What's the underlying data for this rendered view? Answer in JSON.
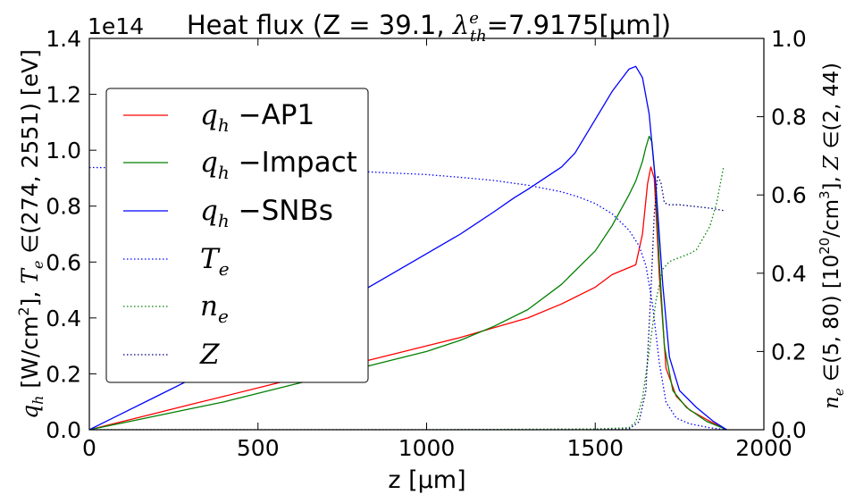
{
  "chart_data": {
    "type": "line",
    "title": "Heat flux (Z = 39.1, λ_th^e=7.9175[μm])",
    "title_parts": {
      "pre": "Heat flux (Z = 39.1, ",
      "symbol": "λ",
      "sup": "e",
      "sub": "th",
      "post": "=7.9175[μm])"
    },
    "offset_text": "1e14",
    "xlabel": "z [μm]",
    "ylabel_left": "q_h [W/cm^2], T_e ∈(274, 2551) [eV]",
    "ylabel_left_parts": {
      "sym1": "q",
      "sym1_sub": "h",
      "mid1": " [W/cm",
      "sup1": "2",
      "mid2": "], ",
      "sym2": "T",
      "sym2_sub": "e",
      "rest": " ∈(274, 2551) [eV]"
    },
    "ylabel_right": "n_e ∈(5, 80) [10^20/cm^3], Z ∈(2, 44)",
    "ylabel_right_parts": {
      "sym1": "n",
      "sym1_sub": "e",
      "mid1": " ∈(5, 80) [10",
      "sup1": "20",
      "mid2": "/cm",
      "sup2": "3",
      "mid3": "], ",
      "sym2": "Z",
      "rest": " ∈(2, 44)"
    },
    "xlim": [
      0,
      2000
    ],
    "ylim": [
      0,
      1.4
    ],
    "ylim_right": [
      0,
      1.0
    ],
    "x_ticks": [
      "0",
      "500",
      "1000",
      "1500",
      "2000"
    ],
    "y_ticks": [
      "0.0",
      "0.2",
      "0.4",
      "0.6",
      "0.8",
      "1.0",
      "1.2",
      "1.4"
    ],
    "y_ticks_right": [
      "0.0",
      "0.2",
      "0.4",
      "0.6",
      "0.8",
      "1.0"
    ],
    "grid": false,
    "legend_position": "upper-left",
    "series": [
      {
        "name": "q_h −AP1",
        "legend_symbol": "q",
        "legend_sub": "h",
        "legend_text": " −AP1",
        "color": "#ff0000",
        "style": "solid",
        "axis": "left",
        "x": [
          0,
          100,
          200,
          300,
          400,
          500,
          600,
          700,
          800,
          900,
          1000,
          1100,
          1200,
          1300,
          1400,
          1500,
          1550,
          1600,
          1620,
          1640,
          1655,
          1665,
          1675,
          1690,
          1710,
          1740,
          1780,
          1840,
          1890
        ],
        "y": [
          0.0,
          0.03,
          0.06,
          0.09,
          0.12,
          0.15,
          0.18,
          0.21,
          0.24,
          0.27,
          0.3,
          0.33,
          0.365,
          0.4,
          0.45,
          0.51,
          0.555,
          0.58,
          0.59,
          0.7,
          0.88,
          0.94,
          0.9,
          0.55,
          0.22,
          0.12,
          0.07,
          0.03,
          0.0
        ]
      },
      {
        "name": "q_h −Impact",
        "legend_symbol": "q",
        "legend_sub": "h",
        "legend_text": " −Impact",
        "color": "#008000",
        "style": "solid",
        "axis": "left",
        "x": [
          0,
          100,
          200,
          300,
          400,
          500,
          600,
          700,
          800,
          900,
          1000,
          1100,
          1200,
          1300,
          1400,
          1500,
          1550,
          1600,
          1620,
          1640,
          1650,
          1660,
          1668,
          1678,
          1690,
          1705,
          1730,
          1770,
          1830,
          1890
        ],
        "y": [
          0.0,
          0.025,
          0.05,
          0.075,
          0.1,
          0.13,
          0.16,
          0.19,
          0.22,
          0.25,
          0.28,
          0.32,
          0.37,
          0.43,
          0.52,
          0.64,
          0.73,
          0.84,
          0.89,
          0.96,
          1.01,
          1.05,
          1.03,
          0.9,
          0.6,
          0.3,
          0.14,
          0.08,
          0.03,
          0.0
        ]
      },
      {
        "name": "q_h −SNBs",
        "legend_symbol": "q",
        "legend_sub": "h",
        "legend_text": " −SNBs",
        "color": "#0000ff",
        "style": "solid",
        "axis": "left",
        "x": [
          0,
          100,
          200,
          300,
          400,
          500,
          600,
          700,
          800,
          900,
          1000,
          1100,
          1200,
          1260,
          1300,
          1400,
          1440,
          1500,
          1550,
          1600,
          1620,
          1640,
          1660,
          1680,
          1700,
          1720,
          1750,
          1800,
          1850,
          1890
        ],
        "y": [
          0.0,
          0.06,
          0.12,
          0.18,
          0.24,
          0.3,
          0.36,
          0.42,
          0.49,
          0.56,
          0.63,
          0.7,
          0.78,
          0.83,
          0.86,
          0.94,
          0.99,
          1.11,
          1.21,
          1.29,
          1.3,
          1.26,
          1.13,
          0.87,
          0.52,
          0.26,
          0.14,
          0.08,
          0.03,
          0.0
        ]
      },
      {
        "name": "T_e",
        "legend_symbol": "T",
        "legend_sub": "e",
        "legend_text": "",
        "color": "#0000ff",
        "style": "dotted",
        "axis": "right",
        "x": [
          0,
          200,
          400,
          600,
          800,
          1000,
          1100,
          1200,
          1300,
          1400,
          1450,
          1500,
          1550,
          1600,
          1630,
          1650,
          1670,
          1690,
          1710,
          1740,
          1780,
          1840,
          1890
        ],
        "y": [
          0.67,
          0.669,
          0.667,
          0.664,
          0.66,
          0.652,
          0.645,
          0.637,
          0.625,
          0.608,
          0.595,
          0.578,
          0.552,
          0.51,
          0.47,
          0.42,
          0.32,
          0.17,
          0.07,
          0.03,
          0.015,
          0.005,
          0.0
        ]
      },
      {
        "name": "n_e",
        "legend_symbol": "n",
        "legend_sub": "e",
        "legend_text": "",
        "color": "#008000",
        "style": "dotted",
        "axis": "right",
        "x": [
          0,
          500,
          1000,
          1500,
          1600,
          1620,
          1640,
          1660,
          1680,
          1700,
          1720,
          1750,
          1780,
          1800,
          1820,
          1840,
          1860,
          1880
        ],
        "y": [
          0.0,
          0.0,
          0.0,
          0.002,
          0.005,
          0.02,
          0.08,
          0.2,
          0.33,
          0.41,
          0.43,
          0.44,
          0.45,
          0.46,
          0.49,
          0.52,
          0.58,
          0.67
        ]
      },
      {
        "name": "Z",
        "legend_symbol": "Z",
        "legend_sub": "",
        "legend_text": "",
        "color": "#000080",
        "style": "dotted",
        "axis": "right",
        "x": [
          0,
          500,
          1000,
          1500,
          1600,
          1630,
          1650,
          1665,
          1675,
          1685,
          1695,
          1705,
          1720,
          1750,
          1800,
          1850,
          1880
        ],
        "y": [
          0.0,
          0.0,
          0.0,
          0.0,
          0.002,
          0.02,
          0.1,
          0.35,
          0.55,
          0.65,
          0.63,
          0.58,
          0.575,
          0.575,
          0.57,
          0.565,
          0.56
        ]
      }
    ]
  }
}
